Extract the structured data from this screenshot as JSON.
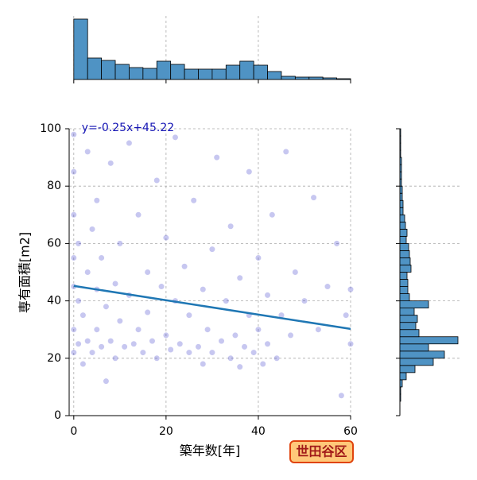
{
  "chart_data": {
    "type": "scatter",
    "xlabel": "築年数[年]",
    "ylabel": "専有面積[m2]",
    "xlim": [
      -1,
      60
    ],
    "ylim": [
      0,
      100
    ],
    "xticks": [
      0,
      20,
      40,
      60
    ],
    "yticks": [
      0,
      20,
      40,
      60,
      80,
      100
    ],
    "grid": true,
    "color": "#3535c8",
    "x": [
      0,
      0,
      0,
      0,
      0,
      0,
      0,
      1,
      1,
      1,
      2,
      2,
      3,
      3,
      3,
      4,
      4,
      5,
      5,
      5,
      6,
      6,
      7,
      7,
      8,
      8,
      9,
      9,
      10,
      10,
      11,
      12,
      12,
      13,
      14,
      14,
      15,
      16,
      16,
      17,
      18,
      18,
      19,
      20,
      20,
      21,
      22,
      22,
      23,
      24,
      25,
      25,
      26,
      27,
      28,
      28,
      29,
      30,
      30,
      31,
      32,
      33,
      34,
      34,
      35,
      36,
      36,
      37,
      38,
      38,
      39,
      40,
      40,
      41,
      42,
      42,
      43,
      44,
      45,
      46,
      47,
      48,
      50,
      52,
      53,
      55,
      57,
      58,
      59,
      60,
      60
    ],
    "y": [
      98,
      85,
      70,
      55,
      45,
      30,
      22,
      60,
      40,
      25,
      35,
      18,
      92,
      50,
      26,
      65,
      22,
      44,
      30,
      75,
      24,
      55,
      38,
      12,
      88,
      26,
      46,
      20,
      33,
      60,
      24,
      95,
      42,
      25,
      70,
      30,
      22,
      50,
      36,
      26,
      82,
      20,
      45,
      28,
      62,
      23,
      40,
      97,
      25,
      52,
      22,
      35,
      75,
      24,
      44,
      18,
      30,
      58,
      22,
      90,
      26,
      40,
      20,
      66,
      28,
      48,
      17,
      24,
      35,
      85,
      22,
      55,
      30,
      18,
      42,
      25,
      70,
      20,
      35,
      92,
      28,
      50,
      40,
      76,
      30,
      45,
      60,
      7,
      35,
      44,
      25
    ],
    "regression": {
      "label": "y=-0.25x+45.22",
      "slope": -0.25,
      "intercept": 45.22,
      "color": "#1f77b4"
    },
    "top_hist": {
      "bins": [
        0,
        3,
        6,
        9,
        12,
        15,
        18,
        21,
        24,
        27,
        30,
        33,
        36,
        39,
        42,
        45,
        48,
        51,
        54,
        57,
        60
      ],
      "counts": [
        76,
        27,
        24,
        19,
        15,
        14,
        23,
        19,
        13,
        13,
        13,
        18,
        23,
        18,
        10,
        4,
        3,
        3,
        2,
        1
      ],
      "ylim": [
        0,
        76
      ],
      "color": "#4f93c4"
    },
    "right_hist": {
      "bins": [
        0,
        2.5,
        5,
        7.5,
        10,
        12.5,
        15,
        17.5,
        20,
        22.5,
        25,
        27.5,
        30,
        32.5,
        35,
        37.5,
        40,
        42.5,
        45,
        47.5,
        50,
        52.5,
        55,
        57.5,
        60,
        62.5,
        65,
        67.5,
        70,
        72.5,
        75,
        77.5,
        80,
        82.5,
        85,
        87.5,
        90,
        92.5,
        95,
        97.5,
        100
      ],
      "counts": [
        0,
        0,
        1,
        1,
        3,
        8,
        19,
        42,
        56,
        36,
        73,
        24,
        20,
        22,
        18,
        36,
        12,
        10,
        10,
        9,
        14,
        13,
        12,
        11,
        8,
        9,
        7,
        6,
        4,
        4,
        3,
        3,
        2,
        2,
        2,
        2,
        1,
        1,
        1,
        1
      ],
      "xlim": [
        0,
        73
      ],
      "color": "#4f93c4"
    },
    "badge": "世田谷区"
  }
}
